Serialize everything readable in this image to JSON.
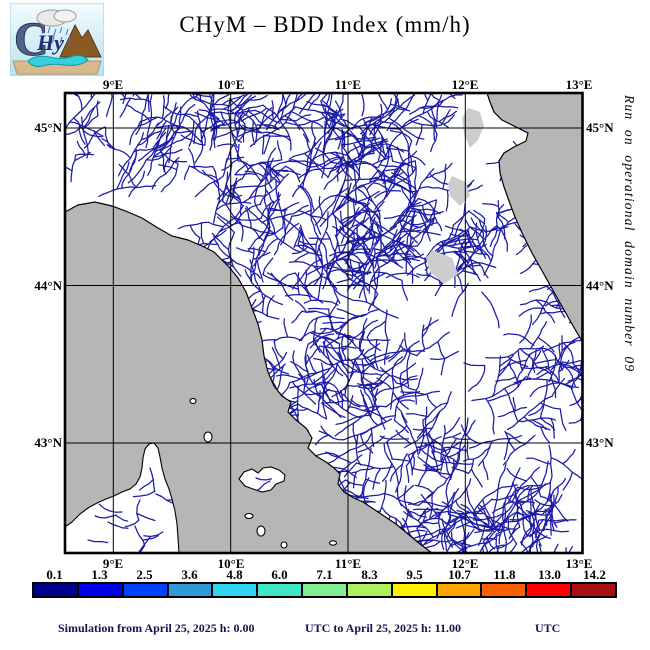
{
  "header": {
    "title": "CHyM – BDD Index (mm/h)",
    "logo_label": "CHyM"
  },
  "side_note": "Run on operational domain number 09",
  "map": {
    "x_ticks": [
      "9°E",
      "10°E",
      "11°E",
      "12°E",
      "13°E"
    ],
    "y_ticks": [
      "45°N",
      "44°N",
      "43°N"
    ]
  },
  "colorbar": {
    "unit": "mm/h",
    "labels": [
      "0.1",
      "1.3",
      "2.5",
      "3.6",
      "4.8",
      "6.0",
      "7.1",
      "8.3",
      "9.5",
      "10.7",
      "11.8",
      "13.0",
      "14.2"
    ],
    "colors": [
      "#00008c",
      "#0000e8",
      "#0040ff",
      "#2e9ad8",
      "#30d5f0",
      "#40e8c8",
      "#80ee90",
      "#acf05c",
      "#fff000",
      "#ffa500",
      "#f86000",
      "#ff0000",
      "#a81010"
    ]
  },
  "footer": {
    "part1": "Simulation from April 25, 2025 h: 0.00",
    "part2": "UTC to April 25, 2025 h: 11.00",
    "part3": "UTC"
  },
  "colors": {
    "river": "#1b1ba6",
    "sea": "#b6b6b6"
  }
}
